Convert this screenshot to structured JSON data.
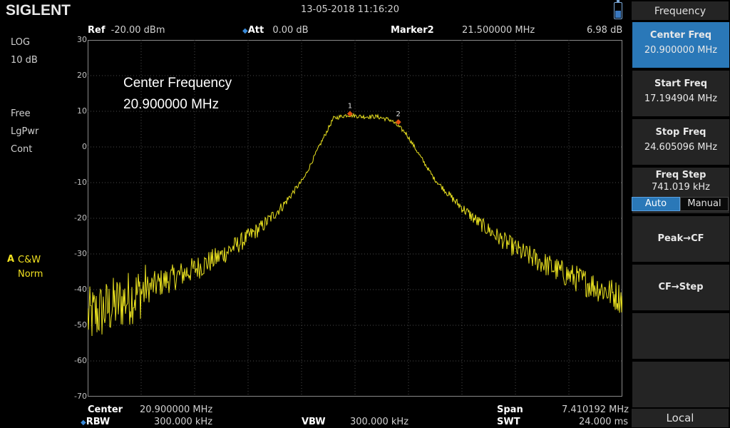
{
  "header": {
    "brand": "SIGLENT",
    "datetime": "13-05-2018   11:16:20"
  },
  "top_bar": {
    "ref_label": "Ref",
    "ref_value": "-20.00 dBm",
    "att_label": "Att",
    "att_value": "0.00 dB",
    "marker_label": "Marker2",
    "marker_freq": "21.500000 MHz",
    "marker_level": "6.98 dB"
  },
  "left_panel": {
    "scale_type": "LOG",
    "scale_div": "10 dB",
    "trigger": "Free",
    "detector": "LgPwr",
    "sweep_mode": "Cont",
    "trace_letter": "A",
    "trace_mode": "C&W",
    "trace_type": "Norm"
  },
  "annotation": {
    "line1": "Center Frequency",
    "line2": "20.900000 MHz"
  },
  "bottom_bar": {
    "center_label": "Center",
    "center_value": "20.900000 MHz",
    "rbw_label": "RBW",
    "rbw_value": "300.000 kHz",
    "vbw_label": "VBW",
    "vbw_value": "300.000 kHz",
    "span_label": "Span",
    "span_value": "7.410192 MHz",
    "swt_label": "SWT",
    "swt_value": "24.000 ms"
  },
  "softkeys": {
    "menu_title": "Frequency",
    "center_freq_label": "Center Freq",
    "center_freq_value": "20.900000 MHz",
    "start_freq_label": "Start Freq",
    "start_freq_value": "17.194904 MHz",
    "stop_freq_label": "Stop Freq",
    "stop_freq_value": "24.605096 MHz",
    "freq_step_label": "Freq Step",
    "freq_step_value": "741.019 kHz",
    "auto_label": "Auto",
    "manual_label": "Manual",
    "peak_cf_label": "Peak→CF",
    "cf_step_label": "CF→Step",
    "local_label": "Local"
  },
  "colors": {
    "trace": "#e8e020",
    "accent": "#2a78b8",
    "marker": "#e05010",
    "grid": "#4a4a4a"
  },
  "chart_data": {
    "type": "line",
    "xlabel": "",
    "ylabel": "",
    "x_range_mhz": [
      17.194904,
      24.605096
    ],
    "ylim": [
      -70,
      30
    ],
    "y_ticks": [
      "30",
      "20",
      "10",
      "0",
      "-10",
      "-20",
      "-30",
      "-40",
      "-50",
      "-60",
      "-70"
    ],
    "grid": true,
    "series": [
      {
        "x": [
          17.19,
          17.5,
          17.8,
          18.1,
          18.4,
          18.7,
          19.0,
          19.3,
          19.6,
          19.9,
          20.2,
          20.4,
          20.6,
          20.8,
          21.0,
          21.2,
          21.4,
          21.6,
          21.8,
          22.0,
          22.3,
          22.6,
          22.9,
          23.2,
          23.5,
          23.8,
          24.1,
          24.4,
          24.6
        ],
        "y": [
          -48,
          -45,
          -42,
          -39,
          -36.5,
          -34,
          -31,
          -27,
          -22.5,
          -16.5,
          -8.5,
          0,
          8,
          9,
          8.5,
          8.5,
          7.5,
          4,
          -2.5,
          -9,
          -15.5,
          -21,
          -25.5,
          -29.5,
          -32.5,
          -35.5,
          -38,
          -40.5,
          -42.5
        ]
      }
    ],
    "markers": [
      {
        "label": "1",
        "x": 20.83,
        "y": 9.3
      },
      {
        "label": "2",
        "x": 21.5,
        "y": 6.98
      }
    ]
  }
}
